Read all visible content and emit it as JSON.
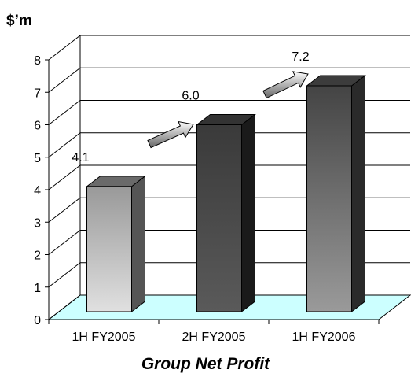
{
  "chart_data": {
    "type": "bar",
    "title": "Group Net Profit",
    "unit_label": "$’m",
    "categories": [
      "1H FY2005",
      "2H FY2005",
      "1H FY2006"
    ],
    "values": [
      4.1,
      6.0,
      7.2
    ],
    "value_labels": [
      "4.1",
      "6.0",
      "7.2"
    ],
    "ylim": [
      0,
      8
    ],
    "yticks": [
      "0",
      "1",
      "2",
      "3",
      "4",
      "5",
      "6",
      "7",
      "8"
    ],
    "grid": true,
    "style": "3d-bars",
    "legend": "none",
    "colors": {
      "floor": "#ccffff",
      "bar_1_front_top": "#999999",
      "bar_1_front_bottom": "#e0e0e0",
      "bar_2_front": "#3a3a3a",
      "bar_3_front_top": "#444444",
      "bar_3_front_bottom": "#9a9a9a",
      "arrow": "#888888"
    }
  }
}
